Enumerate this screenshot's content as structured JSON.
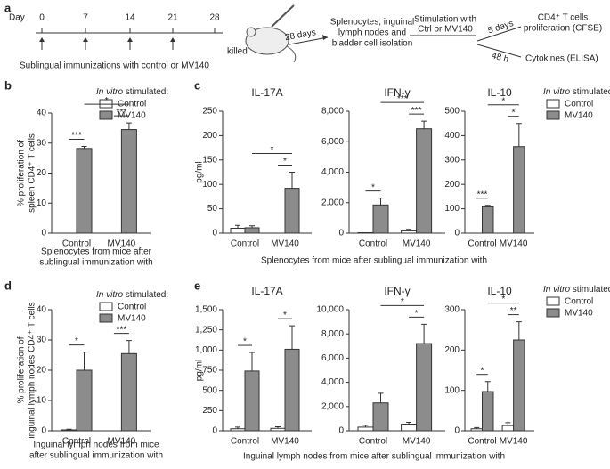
{
  "panel_a": {
    "label": "a",
    "day_label": "Day",
    "days": [
      0,
      7,
      14,
      21,
      28
    ],
    "end_label": "killed",
    "caption": "Sublingual immunizations with control or MV140",
    "wait_label": "28 days",
    "isolation": [
      "Splenocytes, inguinal",
      "lymph nodes and",
      "bladder cell isolation"
    ],
    "stimulation": [
      "Stimulation with",
      "Ctrl or MV140"
    ],
    "branch1_label": "5 days",
    "branch1": [
      "CD4⁺ T cells",
      "proliferation (CFSE)"
    ],
    "branch2_label": "48 h",
    "branch2": "Cytokines (ELISA)"
  },
  "chart_data": [
    {
      "type": "bar",
      "panel_label": "b",
      "categories": [
        "Control",
        "MV140"
      ],
      "legend_title_italic": "In vitro",
      "legend_title": "stimulated:",
      "series": [
        {
          "name": "Control",
          "color": "#ffffff"
        },
        {
          "name": "MV140",
          "color": "#8c8c8c"
        }
      ],
      "ylabel": [
        "% proliferation of",
        "spleen CD4⁺ T cells"
      ],
      "xlabel": [
        "Splenocytes from mice after",
        "sublingual immunization with"
      ],
      "facets": [
        {
          "ylim": [
            0,
            40
          ],
          "yticks": [
            0,
            10,
            20,
            30,
            40
          ],
          "series": [
            {
              "values": [
                0,
                0
              ],
              "errors": [
                0,
                0
              ]
            },
            {
              "values": [
                28.2,
                34.5
              ],
              "errors": [
                0.7,
                2.2
              ]
            }
          ],
          "significance": [
            {
              "label": "***",
              "bars": [
                [
                  0,
                  0
                ],
                [
                  0,
                  1
                ]
              ]
            },
            {
              "label": "***",
              "bars": [
                [
                  1,
                  0
                ],
                [
                  1,
                  1
                ]
              ]
            },
            {
              "label": "*",
              "bars": [
                [
                  0,
                  1
                ],
                [
                  1,
                  1
                ]
              ]
            }
          ]
        }
      ]
    },
    {
      "type": "bar",
      "panel_label": "c",
      "categories": [
        "Control",
        "MV140"
      ],
      "legend_title_italic": "In vitro",
      "legend_title": "stimulated:",
      "series": [
        {
          "name": "Control",
          "color": "#ffffff"
        },
        {
          "name": "MV140",
          "color": "#8c8c8c"
        }
      ],
      "ylabel": [
        "pg/ml"
      ],
      "xlabel": [
        "Splenocytes from mice after sublingual immunization with"
      ],
      "facets": [
        {
          "title": "IL-17A",
          "ylim": [
            0,
            250
          ],
          "yticks": [
            0,
            50,
            100,
            150,
            200,
            250
          ],
          "series": [
            {
              "values": [
                10,
                0
              ],
              "errors": [
                6,
                0
              ]
            },
            {
              "values": [
                11,
                92
              ],
              "errors": [
                4,
                33
              ]
            }
          ],
          "significance": [
            {
              "label": "*",
              "bars": [
                [
                  1,
                  0
                ],
                [
                  1,
                  1
                ]
              ]
            },
            {
              "label": "*",
              "bars": [
                [
                  0,
                  1
                ],
                [
                  1,
                  1
                ]
              ]
            }
          ]
        },
        {
          "title": "IFN-γ",
          "ylim": [
            0,
            8000
          ],
          "yticks": [
            0,
            {
              "value": 2000,
              "label": "2,000"
            },
            {
              "value": 4000,
              "label": "4,000"
            },
            {
              "value": 6000,
              "label": "6,000"
            },
            {
              "value": 8000,
              "label": "8,000"
            }
          ],
          "series": [
            {
              "values": [
                30,
                150
              ],
              "errors": [
                0,
                100
              ]
            },
            {
              "values": [
                1850,
                6850
              ],
              "errors": [
                450,
                500
              ]
            }
          ],
          "significance": [
            {
              "label": "*",
              "bars": [
                [
                  0,
                  0
                ],
                [
                  0,
                  1
                ]
              ]
            },
            {
              "label": "***",
              "bars": [
                [
                  1,
                  0
                ],
                [
                  1,
                  1
                ]
              ]
            },
            {
              "label": "***",
              "bars": [
                [
                  0,
                  1
                ],
                [
                  1,
                  1
                ]
              ]
            }
          ]
        },
        {
          "title": "IL-10",
          "ylim": [
            0,
            500
          ],
          "yticks": [
            0,
            100,
            200,
            300,
            400,
            500
          ],
          "series": [
            {
              "values": [
                0,
                0
              ],
              "errors": [
                0,
                0
              ]
            },
            {
              "values": [
                108,
                355
              ],
              "errors": [
                6,
                95
              ]
            }
          ],
          "significance": [
            {
              "label": "***",
              "bars": [
                [
                  0,
                  0
                ],
                [
                  0,
                  1
                ]
              ]
            },
            {
              "label": "*",
              "bars": [
                [
                  1,
                  0
                ],
                [
                  1,
                  1
                ]
              ]
            },
            {
              "label": "*",
              "bars": [
                [
                  0,
                  1
                ],
                [
                  1,
                  1
                ]
              ]
            }
          ]
        }
      ]
    },
    {
      "type": "bar",
      "panel_label": "d",
      "categories": [
        "Control",
        "MV140"
      ],
      "legend_title_italic": "In vitro",
      "legend_title": "stimulated:",
      "series": [
        {
          "name": "Control",
          "color": "#ffffff"
        },
        {
          "name": "MV140",
          "color": "#8c8c8c"
        }
      ],
      "ylabel": [
        "% proliferation of",
        "inguinal lymph nodes CD4⁺ T cells"
      ],
      "xlabel": [
        "Inguinal lymph nodes from mice",
        "after sublingual immunization with"
      ],
      "facets": [
        {
          "ylim": [
            0,
            40
          ],
          "yticks": [
            0,
            10,
            20,
            30,
            40
          ],
          "series": [
            {
              "values": [
                0.3,
                0
              ],
              "errors": [
                0.2,
                0
              ]
            },
            {
              "values": [
                20,
                25.5
              ],
              "errors": [
                6,
                4.3
              ]
            }
          ],
          "significance": [
            {
              "label": "*",
              "bars": [
                [
                  0,
                  0
                ],
                [
                  0,
                  1
                ]
              ]
            },
            {
              "label": "***",
              "bars": [
                [
                  1,
                  0
                ],
                [
                  1,
                  1
                ]
              ]
            }
          ]
        }
      ]
    },
    {
      "type": "bar",
      "panel_label": "e",
      "categories": [
        "Control",
        "MV140"
      ],
      "legend_title_italic": "In vitro",
      "legend_title": "stimulated:",
      "series": [
        {
          "name": "Control",
          "color": "#ffffff"
        },
        {
          "name": "MV140",
          "color": "#8c8c8c"
        }
      ],
      "ylabel": [
        "pg/ml"
      ],
      "xlabel": [
        "Inguinal lymph nodes from mice after sublingual immunization with"
      ],
      "facets": [
        {
          "title": "IL-17A",
          "ylim": [
            0,
            1500
          ],
          "yticks": [
            0,
            250,
            500,
            750,
            {
              "value": 1000,
              "label": "1,000"
            },
            {
              "value": 1250,
              "label": "1,250"
            },
            {
              "value": 1500,
              "label": "1,500"
            }
          ],
          "series": [
            {
              "values": [
                25,
                30
              ],
              "errors": [
                20,
                20
              ]
            },
            {
              "values": [
                740,
                1010
              ],
              "errors": [
                230,
                290
              ]
            }
          ],
          "significance": [
            {
              "label": "*",
              "bars": [
                [
                  0,
                  0
                ],
                [
                  0,
                  1
                ]
              ]
            },
            {
              "label": "*",
              "bars": [
                [
                  1,
                  0
                ],
                [
                  1,
                  1
                ]
              ]
            }
          ]
        },
        {
          "title": "IFN-γ",
          "ylim": [
            0,
            10000
          ],
          "yticks": [
            0,
            {
              "value": 2000,
              "label": "2,000"
            },
            {
              "value": 4000,
              "label": "4,000"
            },
            {
              "value": 6000,
              "label": "6,000"
            },
            {
              "value": 8000,
              "label": "8,000"
            },
            {
              "value": 10000,
              "label": "10,000"
            }
          ],
          "series": [
            {
              "values": [
                300,
                550
              ],
              "errors": [
                150,
                150
              ]
            },
            {
              "values": [
                2300,
                7200
              ],
              "errors": [
                800,
                1600
              ]
            }
          ],
          "significance": [
            {
              "label": "*",
              "bars": [
                [
                  1,
                  0
                ],
                [
                  1,
                  1
                ]
              ]
            },
            {
              "label": "*",
              "bars": [
                [
                  0,
                  1
                ],
                [
                  1,
                  1
                ]
              ]
            }
          ]
        },
        {
          "title": "IL-10",
          "ylim": [
            0,
            300
          ],
          "yticks": [
            0,
            100,
            200,
            300
          ],
          "series": [
            {
              "values": [
                5,
                13
              ],
              "errors": [
                3,
                7
              ]
            },
            {
              "values": [
                97,
                225
              ],
              "errors": [
                25,
                45
              ]
            }
          ],
          "significance": [
            {
              "label": "*",
              "bars": [
                [
                  0,
                  0
                ],
                [
                  0,
                  1
                ]
              ]
            },
            {
              "label": "**",
              "bars": [
                [
                  1,
                  0
                ],
                [
                  1,
                  1
                ]
              ]
            },
            {
              "label": "*",
              "bars": [
                [
                  0,
                  1
                ],
                [
                  1,
                  1
                ]
              ]
            }
          ]
        }
      ]
    }
  ]
}
